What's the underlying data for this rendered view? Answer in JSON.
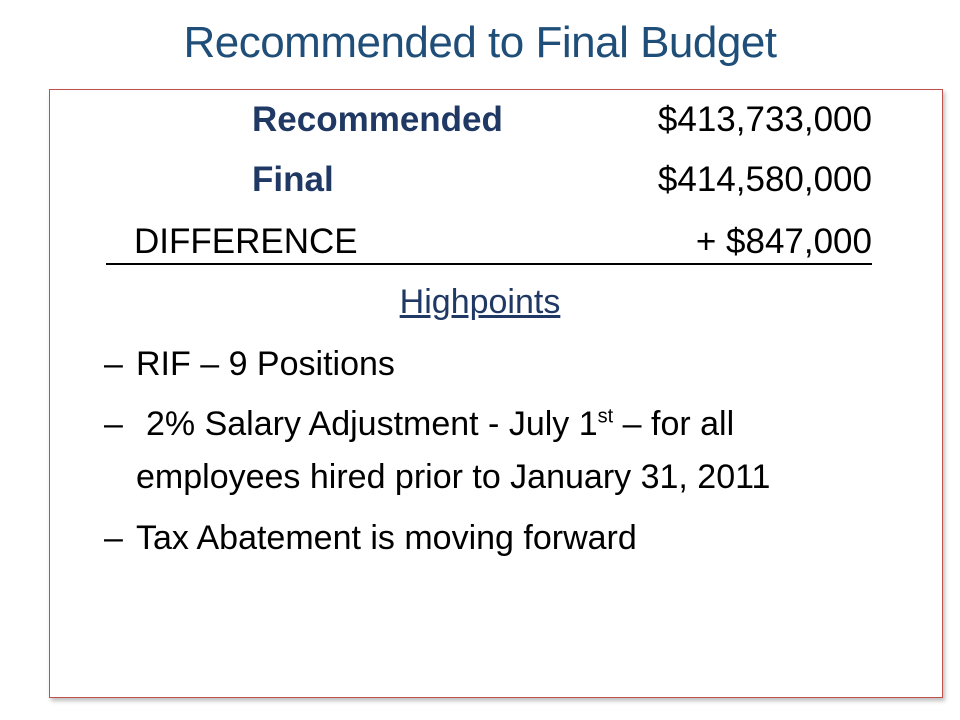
{
  "slide": {
    "title": "Recommended to Final Budget"
  },
  "budget": {
    "recommended_label": "Recommended",
    "recommended_amount": "$413,733,000",
    "final_label": "Final",
    "final_amount": "$414,580,000",
    "difference_label": "DIFFERENCE",
    "difference_amount": "+ $847,000"
  },
  "highpoints": {
    "heading": "Highpoints",
    "dash": "–",
    "items": [
      {
        "text": "RIF – 9 Positions"
      },
      {
        "line1_before": "2% Salary Adjustment  - July 1",
        "line1_sup": "st",
        "line1_after": " – for all",
        "line2": "employees hired prior to January 31, 2011"
      },
      {
        "text": "Tax Abatement is moving forward"
      }
    ]
  }
}
